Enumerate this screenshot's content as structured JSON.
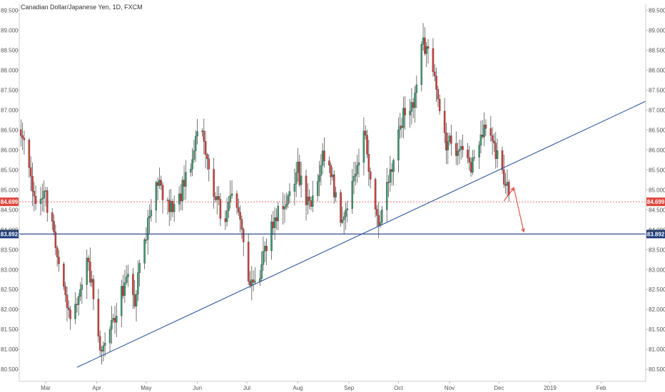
{
  "chart_data": {
    "type": "candlestick",
    "title": "Canadian Dollar/Japanese Yen, 1D, FXCM",
    "ylim": [
      80.2,
      89.65
    ],
    "y_ticks": [
      "80.500",
      "81.000",
      "81.500",
      "82.000",
      "82.500",
      "83.000",
      "83.500",
      "84.000",
      "84.500",
      "85.000",
      "85.500",
      "86.000",
      "86.500",
      "87.000",
      "87.500",
      "88.000",
      "88.500",
      "89.000",
      "89.500"
    ],
    "x_ticks": [
      {
        "label": "Mar",
        "date": "2018-03-01"
      },
      {
        "label": "Apr",
        "date": "2018-04-01"
      },
      {
        "label": "May",
        "date": "2018-05-01"
      },
      {
        "label": "Jun",
        "date": "2018-06-01"
      },
      {
        "label": "Jul",
        "date": "2018-07-01"
      },
      {
        "label": "Aug",
        "date": "2018-08-01"
      },
      {
        "label": "Sep",
        "date": "2018-09-01"
      },
      {
        "label": "Oct",
        "date": "2018-10-01"
      },
      {
        "label": "Nov",
        "date": "2018-11-01"
      },
      {
        "label": "Dec",
        "date": "2018-12-01"
      },
      {
        "label": "2019",
        "date": "2019-01-01"
      },
      {
        "label": "Feb",
        "date": "2019-02-01"
      }
    ],
    "x_range": [
      "2018-02-13",
      "2019-02-28"
    ],
    "candle_path": [
      [
        "2018-02-14",
        86.45
      ],
      [
        "2018-02-20",
        85.2
      ],
      [
        "2018-02-23",
        84.6
      ],
      [
        "2018-02-28",
        84.95
      ],
      [
        "2018-03-05",
        84.2
      ],
      [
        "2018-03-10",
        83.1
      ],
      [
        "2018-03-15",
        81.8
      ],
      [
        "2018-03-21",
        82.35
      ],
      [
        "2018-03-26",
        83.4
      ],
      [
        "2018-03-30",
        82.3
      ],
      [
        "2018-04-04",
        80.75
      ],
      [
        "2018-04-09",
        81.4
      ],
      [
        "2018-04-14",
        82.2
      ],
      [
        "2018-04-19",
        82.8
      ],
      [
        "2018-04-24",
        82.3
      ],
      [
        "2018-04-28",
        83.2
      ],
      [
        "2018-05-03",
        84.3
      ],
      [
        "2018-05-08",
        85.2
      ],
      [
        "2018-05-14",
        84.7
      ],
      [
        "2018-05-19",
        84.4
      ],
      [
        "2018-05-24",
        85.3
      ],
      [
        "2018-05-29",
        85.8
      ],
      [
        "2018-06-03",
        86.7
      ],
      [
        "2018-06-07",
        85.6
      ],
      [
        "2018-06-12",
        84.8
      ],
      [
        "2018-06-17",
        84.2
      ],
      [
        "2018-06-22",
        84.9
      ],
      [
        "2018-06-27",
        84.3
      ],
      [
        "2018-07-02",
        82.8
      ],
      [
        "2018-07-07",
        82.6
      ],
      [
        "2018-07-12",
        83.5
      ],
      [
        "2018-07-17",
        84.2
      ],
      [
        "2018-07-22",
        84.5
      ],
      [
        "2018-07-27",
        85.1
      ],
      [
        "2018-08-01",
        85.5
      ],
      [
        "2018-08-06",
        84.6
      ],
      [
        "2018-08-11",
        84.8
      ],
      [
        "2018-08-16",
        86.0
      ],
      [
        "2018-08-21",
        85.4
      ],
      [
        "2018-08-26",
        84.4
      ],
      [
        "2018-08-31",
        84.4
      ],
      [
        "2018-09-05",
        85.4
      ],
      [
        "2018-09-10",
        86.5
      ],
      [
        "2018-09-15",
        84.8
      ],
      [
        "2018-09-20",
        84.2
      ],
      [
        "2018-09-25",
        85.2
      ],
      [
        "2018-09-30",
        86.3
      ],
      [
        "2018-10-05",
        87.0
      ],
      [
        "2018-10-10",
        87.1
      ],
      [
        "2018-10-15",
        88.8
      ],
      [
        "2018-10-20",
        88.3
      ],
      [
        "2018-10-25",
        87.3
      ],
      [
        "2018-10-30",
        86.2
      ],
      [
        "2018-11-04",
        86.1
      ],
      [
        "2018-11-09",
        85.9
      ],
      [
        "2018-11-14",
        85.4
      ],
      [
        "2018-11-19",
        86.3
      ],
      [
        "2018-11-24",
        86.6
      ],
      [
        "2018-11-29",
        86.0
      ],
      [
        "2018-12-04",
        85.3
      ],
      [
        "2018-12-09",
        84.7
      ]
    ],
    "series": [
      {
        "name": "84.699",
        "value": 84.699,
        "color": "#e0473e"
      },
      {
        "name": "83.892",
        "value": 83.892,
        "color": "#1b3a7a"
      }
    ],
    "annotations": [
      {
        "type": "trendline",
        "from": [
          "2018-03-20",
          80.55
        ],
        "to": [
          "2019-02-28",
          87.22
        ],
        "color": "#2e5aa0"
      },
      {
        "type": "arrow",
        "points": [
          [
            "2018-12-04",
            84.72
          ],
          [
            "2018-12-10",
            85.05
          ],
          [
            "2018-12-16",
            83.95
          ]
        ],
        "color": "#e0473e"
      }
    ],
    "colors": {
      "up": "#3a9a6e",
      "down": "#d13e3a",
      "axis_text": "#555555",
      "grid": "#e6e6e6",
      "trendline": "#2e5aa0",
      "support": "#1b3a7a",
      "current": "#e0473e"
    },
    "xlabel": "",
    "ylabel": "",
    "grid": false
  }
}
